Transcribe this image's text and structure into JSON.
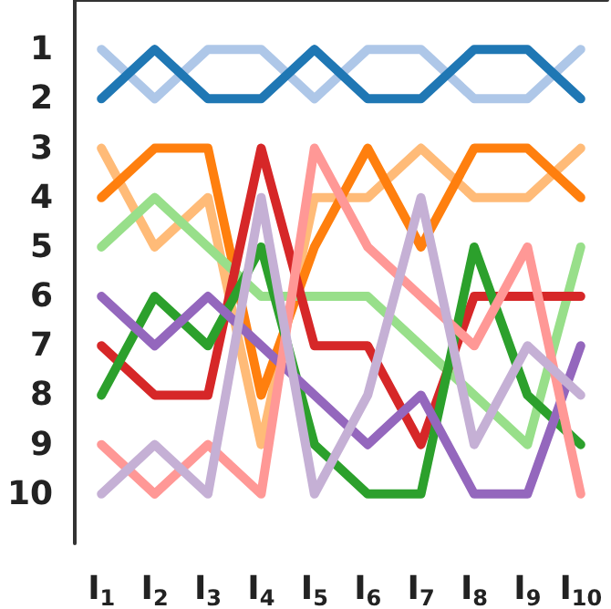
{
  "chart_data": {
    "type": "line",
    "categories": [
      "I$_{1}$",
      "I$_{2}$",
      "I$_{3}$",
      "I$_{4}$",
      "I$_{5}$",
      "I$_{6}$",
      "I$_{7}$",
      "I$_{8}$",
      "I$_{9}$",
      "I$_{10}$"
    ],
    "ylim": [
      11,
      0
    ],
    "yticks": [
      1,
      2,
      3,
      4,
      5,
      6,
      7,
      8,
      9,
      10
    ],
    "grid": false,
    "marker": "none",
    "line_style": "solid",
    "series": [
      {
        "color": "#aec7e8",
        "values": [
          1,
          2,
          1,
          1,
          2,
          1,
          1,
          2,
          2,
          1
        ]
      },
      {
        "color": "#1f77b4",
        "values": [
          2,
          1,
          2,
          2,
          1,
          2,
          2,
          1,
          1,
          2
        ]
      },
      {
        "color": "#ffbb78",
        "values": [
          3,
          5,
          4,
          9,
          4,
          4,
          3,
          4,
          4,
          3
        ]
      },
      {
        "color": "#ff7f0e",
        "values": [
          4,
          3,
          3,
          8,
          5,
          3,
          5,
          3,
          3,
          4
        ]
      },
      {
        "color": "#98df8a",
        "values": [
          5,
          4,
          5,
          6,
          6,
          6,
          7,
          8,
          9,
          5
        ]
      },
      {
        "color": "#d62728",
        "values": [
          7,
          8,
          8,
          3,
          7,
          7,
          9,
          6,
          6,
          6
        ]
      },
      {
        "color": "#2ca02c",
        "values": [
          8,
          6,
          7,
          5,
          9,
          10,
          10,
          5,
          8,
          9
        ]
      },
      {
        "color": "#9467bd",
        "values": [
          6,
          7,
          6,
          7,
          8,
          9,
          8,
          10,
          10,
          7
        ]
      },
      {
        "color": "#ff9896",
        "values": [
          9,
          10,
          9,
          10,
          3,
          5,
          6,
          7,
          5,
          10
        ]
      },
      {
        "color": "#c5b0d5",
        "values": [
          10,
          9,
          10,
          4,
          10,
          8,
          4,
          9,
          7,
          8
        ]
      }
    ]
  }
}
